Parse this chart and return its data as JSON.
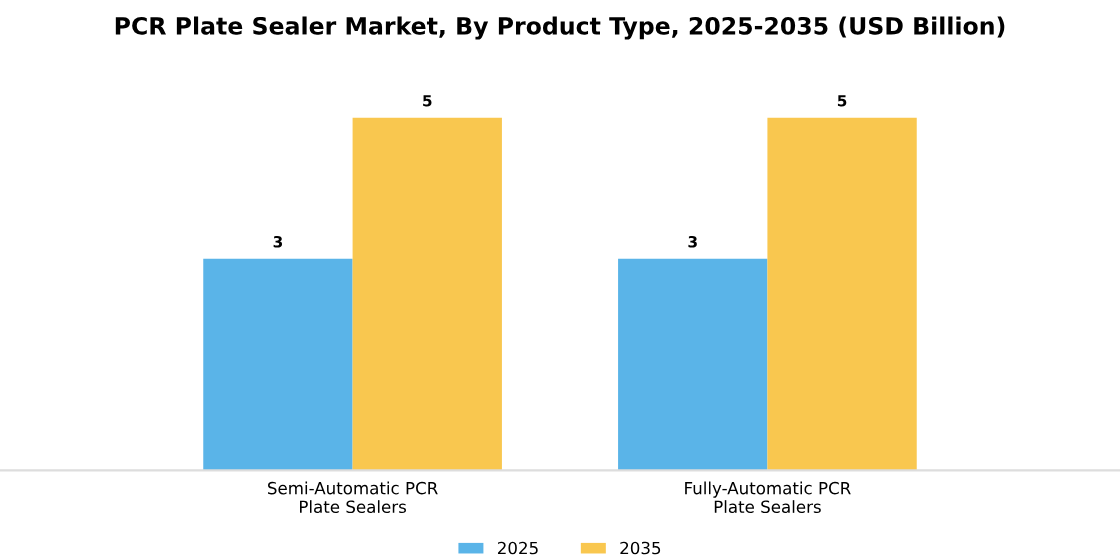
{
  "chart_data": {
    "type": "bar",
    "title": "PCR Plate Sealer Market, By Product Type, 2025-2035 (USD Billion)",
    "categories": [
      "Semi-Automatic PCR\nPlate Sealers",
      "Fully-Automatic PCR\nPlate Sealers"
    ],
    "series": [
      {
        "name": "2025",
        "color": "#5ab4e8",
        "values": [
          3,
          3
        ]
      },
      {
        "name": "2035",
        "color": "#f9c74f",
        "values": [
          5,
          5
        ]
      }
    ],
    "data_labels": true,
    "legend": "bottom",
    "grid": false,
    "tick_labels": "x"
  }
}
